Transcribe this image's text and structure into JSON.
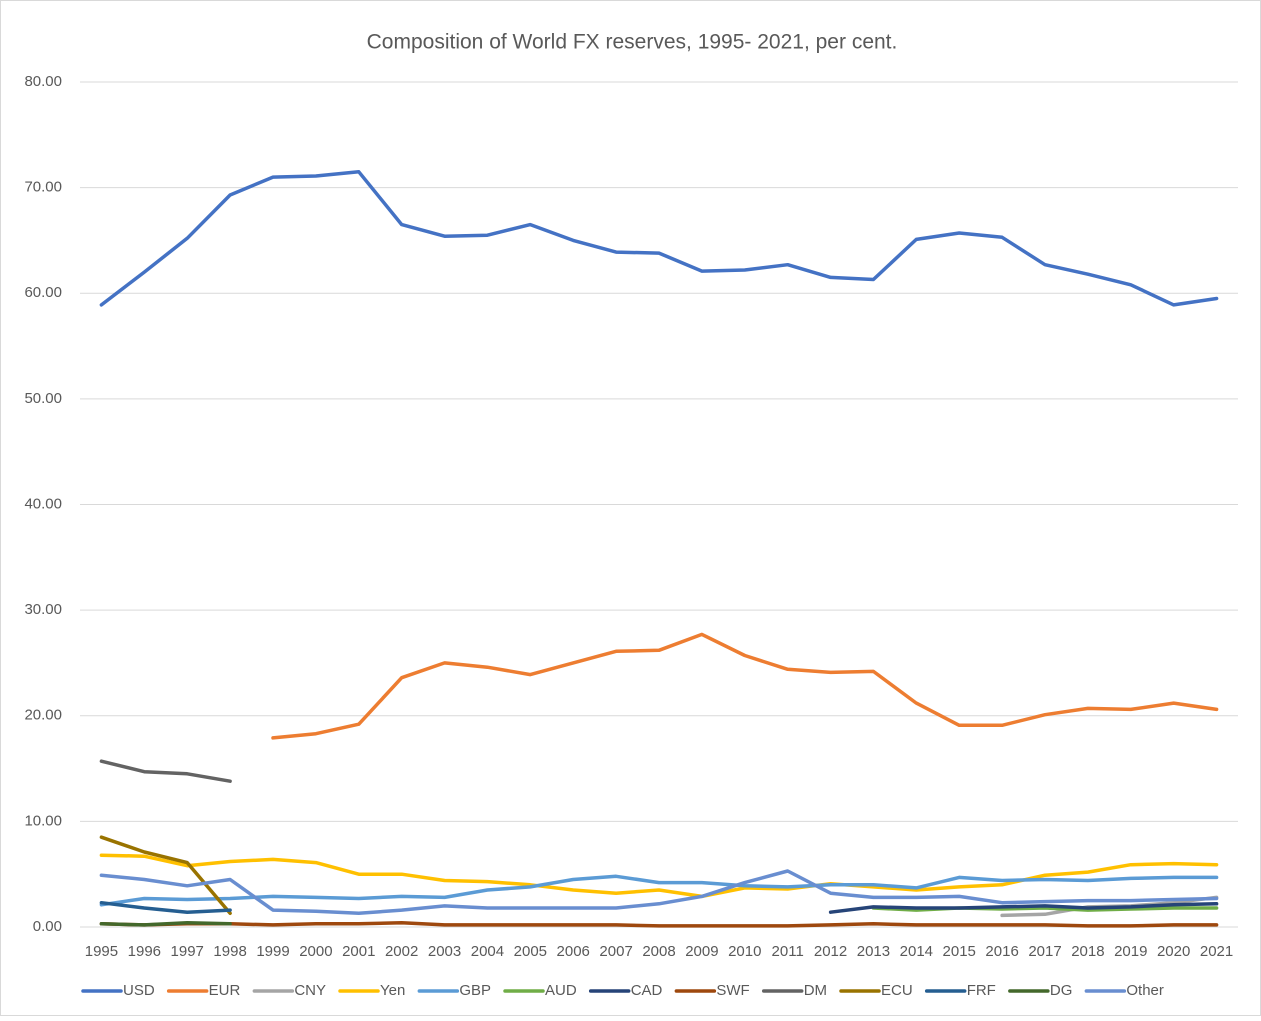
{
  "chart_data": {
    "type": "line",
    "title": "Composition of World FX reserves, 1995- 2021, per cent.",
    "categories": [
      "1995",
      "1996",
      "1997",
      "1998",
      "1999",
      "2000",
      "2001",
      "2002",
      "2003",
      "2004",
      "2005",
      "2006",
      "2007",
      "2008",
      "2009",
      "2010",
      "2011",
      "2012",
      "2013",
      "2014",
      "2015",
      "2016",
      "2017",
      "2018",
      "2019",
      "2020",
      "2021"
    ],
    "ylim": [
      0,
      80
    ],
    "yticks": [
      {
        "value": 0,
        "label": "0.00"
      },
      {
        "value": 10,
        "label": "10.00"
      },
      {
        "value": 20,
        "label": "20.00"
      },
      {
        "value": 30,
        "label": "30.00"
      },
      {
        "value": 40,
        "label": "40.00"
      },
      {
        "value": 50,
        "label": "50.00"
      },
      {
        "value": 60,
        "label": "60.00"
      },
      {
        "value": 70,
        "label": "70.00"
      },
      {
        "value": 80,
        "label": "80.00"
      }
    ],
    "grid": true,
    "legend": "bottom",
    "series": [
      {
        "name": "USD",
        "color": "#4472c4",
        "values": [
          58.9,
          62.0,
          65.2,
          69.3,
          71.0,
          71.1,
          71.5,
          66.5,
          65.4,
          65.5,
          66.5,
          65.0,
          63.9,
          63.8,
          62.1,
          62.2,
          62.7,
          61.5,
          61.3,
          65.1,
          65.7,
          65.3,
          62.7,
          61.8,
          60.8,
          58.9,
          59.5
        ]
      },
      {
        "name": "EUR",
        "color": "#ed7d31",
        "values": [
          null,
          null,
          null,
          null,
          17.9,
          18.3,
          19.2,
          23.6,
          25.0,
          24.6,
          23.9,
          25.0,
          26.1,
          26.2,
          27.7,
          25.7,
          24.4,
          24.1,
          24.2,
          21.2,
          19.1,
          19.1,
          20.1,
          20.7,
          20.6,
          21.2,
          20.6
        ]
      },
      {
        "name": "CNY",
        "color": "#a5a5a5",
        "values": [
          null,
          null,
          null,
          null,
          null,
          null,
          null,
          null,
          null,
          null,
          null,
          null,
          null,
          null,
          null,
          null,
          null,
          null,
          null,
          null,
          null,
          1.1,
          1.2,
          1.9,
          2.0,
          2.3,
          2.8
        ]
      },
      {
        "name": "Yen",
        "color": "#ffc000",
        "values": [
          6.8,
          6.7,
          5.8,
          6.2,
          6.4,
          6.1,
          5.0,
          5.0,
          4.4,
          4.3,
          4.0,
          3.5,
          3.2,
          3.5,
          2.9,
          3.7,
          3.6,
          4.1,
          3.8,
          3.5,
          3.8,
          4.0,
          4.9,
          5.2,
          5.9,
          6.0,
          5.9
        ]
      },
      {
        "name": "GBP",
        "color": "#5b9bd5",
        "values": [
          2.1,
          2.7,
          2.6,
          2.7,
          2.9,
          2.8,
          2.7,
          2.9,
          2.8,
          3.5,
          3.8,
          4.5,
          4.8,
          4.2,
          4.2,
          3.9,
          3.8,
          4.0,
          4.0,
          3.7,
          4.7,
          4.4,
          4.5,
          4.4,
          4.6,
          4.7,
          4.7
        ]
      },
      {
        "name": "AUD",
        "color": "#70ad47",
        "values": [
          null,
          null,
          null,
          null,
          null,
          null,
          null,
          null,
          null,
          null,
          null,
          null,
          null,
          null,
          null,
          null,
          null,
          null,
          1.8,
          1.6,
          1.8,
          1.7,
          1.8,
          1.6,
          1.7,
          1.8,
          1.8
        ]
      },
      {
        "name": "CAD",
        "color": "#264478",
        "values": [
          null,
          null,
          null,
          null,
          null,
          null,
          null,
          null,
          null,
          null,
          null,
          null,
          null,
          null,
          null,
          null,
          null,
          1.4,
          1.9,
          1.8,
          1.8,
          1.9,
          2.0,
          1.8,
          1.9,
          2.1,
          2.2
        ]
      },
      {
        "name": "SWF",
        "color": "#9e480e",
        "values": [
          0.3,
          0.2,
          0.3,
          0.3,
          0.2,
          0.3,
          0.3,
          0.4,
          0.2,
          0.2,
          0.2,
          0.2,
          0.2,
          0.1,
          0.1,
          0.1,
          0.1,
          0.2,
          0.3,
          0.2,
          0.2,
          0.2,
          0.2,
          0.1,
          0.1,
          0.2,
          0.2
        ]
      },
      {
        "name": "DM",
        "color": "#636363",
        "values": [
          15.7,
          14.7,
          14.5,
          13.8,
          null,
          null,
          null,
          null,
          null,
          null,
          null,
          null,
          null,
          null,
          null,
          null,
          null,
          null,
          null,
          null,
          null,
          null,
          null,
          null,
          null,
          null,
          null
        ]
      },
      {
        "name": "ECU",
        "color": "#997300",
        "values": [
          8.5,
          7.1,
          6.1,
          1.3,
          null,
          null,
          null,
          null,
          null,
          null,
          null,
          null,
          null,
          null,
          null,
          null,
          null,
          null,
          null,
          null,
          null,
          null,
          null,
          null,
          null,
          null,
          null
        ]
      },
      {
        "name": "FRF",
        "color": "#255e91",
        "values": [
          2.3,
          1.8,
          1.4,
          1.6,
          null,
          null,
          null,
          null,
          null,
          null,
          null,
          null,
          null,
          null,
          null,
          null,
          null,
          null,
          null,
          null,
          null,
          null,
          null,
          null,
          null,
          null,
          null
        ]
      },
      {
        "name": "DG",
        "color": "#43682b",
        "values": [
          0.3,
          0.2,
          0.4,
          0.3,
          null,
          null,
          null,
          null,
          null,
          null,
          null,
          null,
          null,
          null,
          null,
          null,
          null,
          null,
          null,
          null,
          null,
          null,
          null,
          null,
          null,
          null,
          null
        ]
      },
      {
        "name": "Other",
        "color": "#698ed0",
        "values": [
          4.9,
          4.5,
          3.9,
          4.5,
          1.6,
          1.5,
          1.3,
          1.6,
          2.0,
          1.8,
          1.8,
          1.8,
          1.8,
          2.2,
          2.9,
          4.2,
          5.3,
          3.2,
          2.8,
          2.8,
          2.9,
          2.3,
          2.4,
          2.5,
          2.5,
          2.6,
          2.7
        ]
      }
    ]
  }
}
